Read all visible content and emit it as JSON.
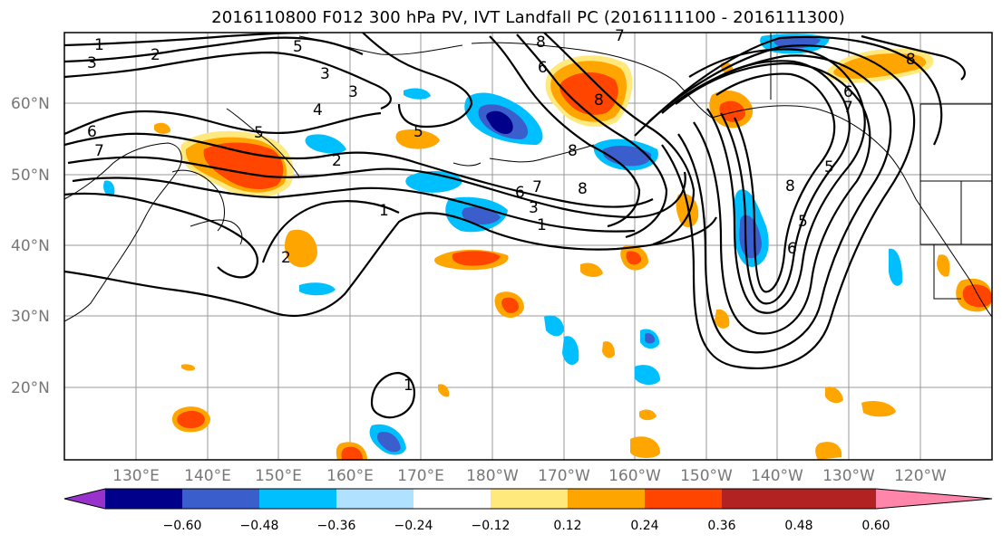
{
  "title": "2016110800 F012 300 hPa PV, IVT Landfall PC (2016111100 - 2016111300)",
  "latitude_labels": [
    "60°N",
    "50°N",
    "40°N",
    "30°N",
    "20°N"
  ],
  "longitude_labels": [
    "130°E",
    "140°E",
    "150°E",
    "160°E",
    "170°E",
    "180°W",
    "170°W",
    "160°W",
    "150°W",
    "140°W",
    "130°W",
    "120°W"
  ],
  "colorbar": {
    "tick_labels": [
      "−0.60",
      "−0.48",
      "−0.36",
      "−0.24",
      "−0.12",
      "0.12",
      "0.24",
      "0.36",
      "0.48",
      "0.60"
    ],
    "colors": [
      "#9932cc",
      "#00008b",
      "#3a5fcd",
      "#00bfff",
      "#b0e2ff",
      "#ffffff",
      "#ffe87c",
      "#ffa500",
      "#ff4500",
      "#b22222",
      "#ff85aa"
    ]
  },
  "contour_labels": [
    "1",
    "2",
    "3",
    "5",
    "3",
    "4",
    "5",
    "6",
    "7",
    "2",
    "1",
    "2",
    "8",
    "7",
    "6",
    "5",
    "6",
    "7",
    "8",
    "3",
    "1",
    "8",
    "8",
    "7",
    "6",
    "5",
    "6",
    "8",
    "5",
    "8",
    "1",
    "3"
  ],
  "chart_data": {
    "type": "contour map",
    "field_contoured": "300 hPa PV",
    "field_shaded": "IVT Landfall PC",
    "colorbar_levels": [
      -0.6,
      -0.48,
      -0.36,
      -0.24,
      -0.12,
      0.12,
      0.24,
      0.36,
      0.48,
      0.6
    ],
    "colorbar_extend": "both"
  }
}
